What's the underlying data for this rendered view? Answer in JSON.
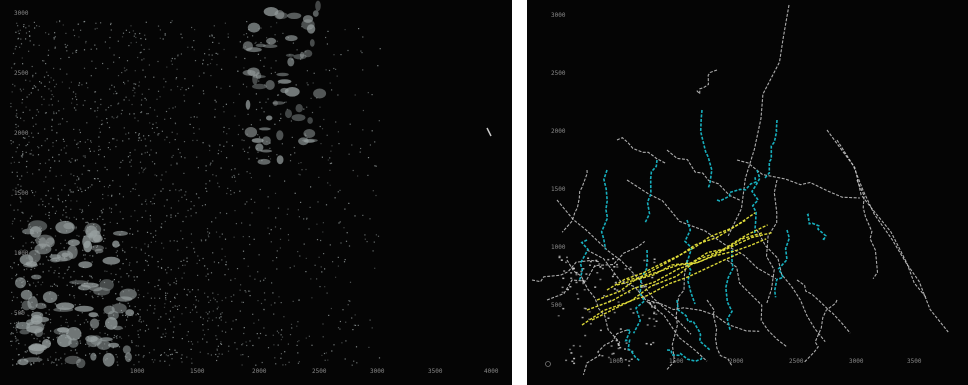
{
  "left_plot": {
    "y_ticks": [
      "3000",
      "2500",
      "2000",
      "1500",
      "1000",
      "500"
    ],
    "x_ticks": [
      "1000",
      "1500",
      "2000",
      "2500",
      "3000",
      "3500",
      "4000"
    ]
  },
  "right_plot": {
    "y_ticks": [
      "3000",
      "2500",
      "2000",
      "1500",
      "1000",
      "500"
    ],
    "x_ticks": [
      "1000",
      "1500",
      "2000",
      "2500",
      "3000",
      "3500"
    ]
  },
  "colors": {
    "background": "#050505",
    "point_cloud": "#9aa2a2",
    "track_white": "#d8d8d8",
    "track_cyan": "#18b8c8",
    "track_yellow": "#e6e23a"
  }
}
